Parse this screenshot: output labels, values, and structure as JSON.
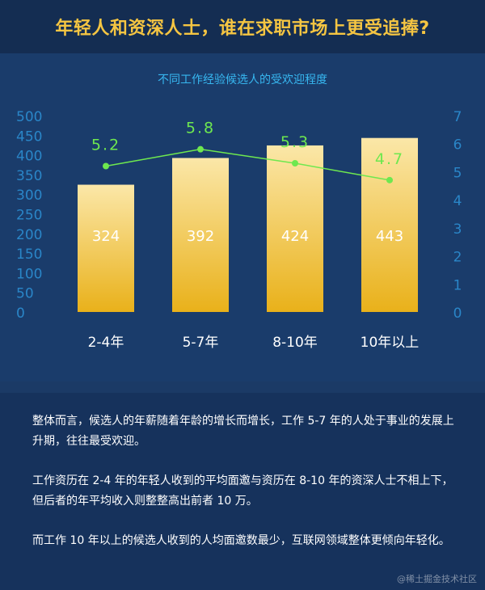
{
  "header": {
    "title": "年轻人和资深人士，谁在求职市场上更受追捧?"
  },
  "colors": {
    "background": "#1b3a66",
    "header_bg": "#142d52",
    "title": "#f5c542",
    "axis_text": "#2a86c8",
    "subtitle": "#37b7f0",
    "bar_top": "#fbe7a8",
    "bar_bottom": "#e9b11a",
    "line": "#6ee84f",
    "text": "#ffffff"
  },
  "chart_data": {
    "type": "bar",
    "title": "不同工作经验候选人的受欢迎程度",
    "categories": [
      "2-4年",
      "5-7年",
      "8-10年",
      "10年以上"
    ],
    "series": [
      {
        "values": [
          324,
          392,
          424,
          443
        ],
        "type": "bar",
        "axis": "left"
      },
      {
        "values": [
          5.2,
          5.8,
          5.3,
          4.7
        ],
        "type": "line",
        "axis": "right"
      }
    ],
    "ylim": [
      0,
      500
    ],
    "y2lim": [
      0,
      7
    ],
    "yticks": [
      "0",
      "50",
      "100",
      "150",
      "200",
      "250",
      "300",
      "350",
      "400",
      "450",
      "500"
    ],
    "y2ticks": [
      "0",
      "1",
      "2",
      "3",
      "4",
      "5",
      "6",
      "7"
    ],
    "bar_labels": [
      "324",
      "392",
      "424",
      "443"
    ],
    "line_labels": [
      "5.2",
      "5.8",
      "5.3",
      "4.7"
    ],
    "grid": false,
    "legend": "none"
  },
  "paragraphs": [
    "整体而言，候选人的年薪随着年龄的增长而增长，工作 5-7 年的人处于事业的发展上升期，往往最受欢迎。",
    "工作资历在 2-4 年的年轻人收到的平均面邀与资历在 8-10 年的资深人士不相上下，但后者的年平均收入则整整高出前者 10 万。",
    "而工作 10 年以上的候选人收到的人均面邀数最少，互联网领域整体更倾向年轻化。"
  ],
  "watermark": "@稀土掘金技术社区"
}
